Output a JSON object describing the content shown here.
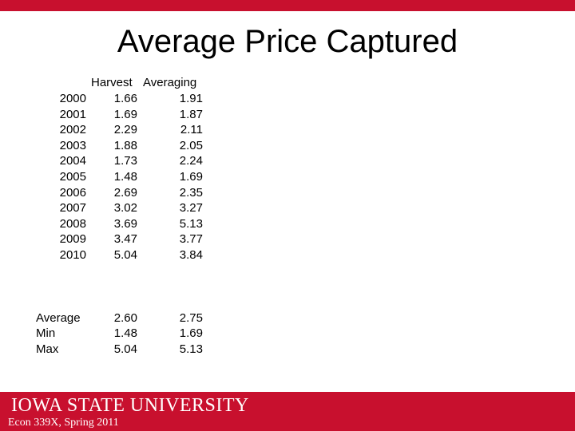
{
  "slide": {
    "title": "Average Price Captured"
  },
  "table": {
    "headers": {
      "col1": "Harvest",
      "col2": "Averaging"
    },
    "rows": [
      {
        "year": "2000",
        "harvest": "1.66",
        "averaging": "1.91"
      },
      {
        "year": "2001",
        "harvest": "1.69",
        "averaging": "1.87"
      },
      {
        "year": "2002",
        "harvest": "2.29",
        "averaging": "2.11"
      },
      {
        "year": "2003",
        "harvest": "1.88",
        "averaging": "2.05"
      },
      {
        "year": "2004",
        "harvest": "1.73",
        "averaging": "2.24"
      },
      {
        "year": "2005",
        "harvest": "1.48",
        "averaging": "1.69"
      },
      {
        "year": "2006",
        "harvest": "2.69",
        "averaging": "2.35"
      },
      {
        "year": "2007",
        "harvest": "3.02",
        "averaging": "3.27"
      },
      {
        "year": "2008",
        "harvest": "3.69",
        "averaging": "5.13"
      },
      {
        "year": "2009",
        "harvest": "3.47",
        "averaging": "3.77"
      },
      {
        "year": "2010",
        "harvest": "5.04",
        "averaging": "3.84"
      }
    ],
    "summary": [
      {
        "label": "Average",
        "harvest": "2.60",
        "averaging": "2.75"
      },
      {
        "label": "Min",
        "harvest": "1.48",
        "averaging": "1.69"
      },
      {
        "label": "Max",
        "harvest": "5.04",
        "averaging": "5.13"
      }
    ]
  },
  "footer": {
    "logo_text": "IOWA STATE UNIVERSITY",
    "course": "Econ 339X, Spring 2011",
    "brand_color": "#c8102e"
  }
}
